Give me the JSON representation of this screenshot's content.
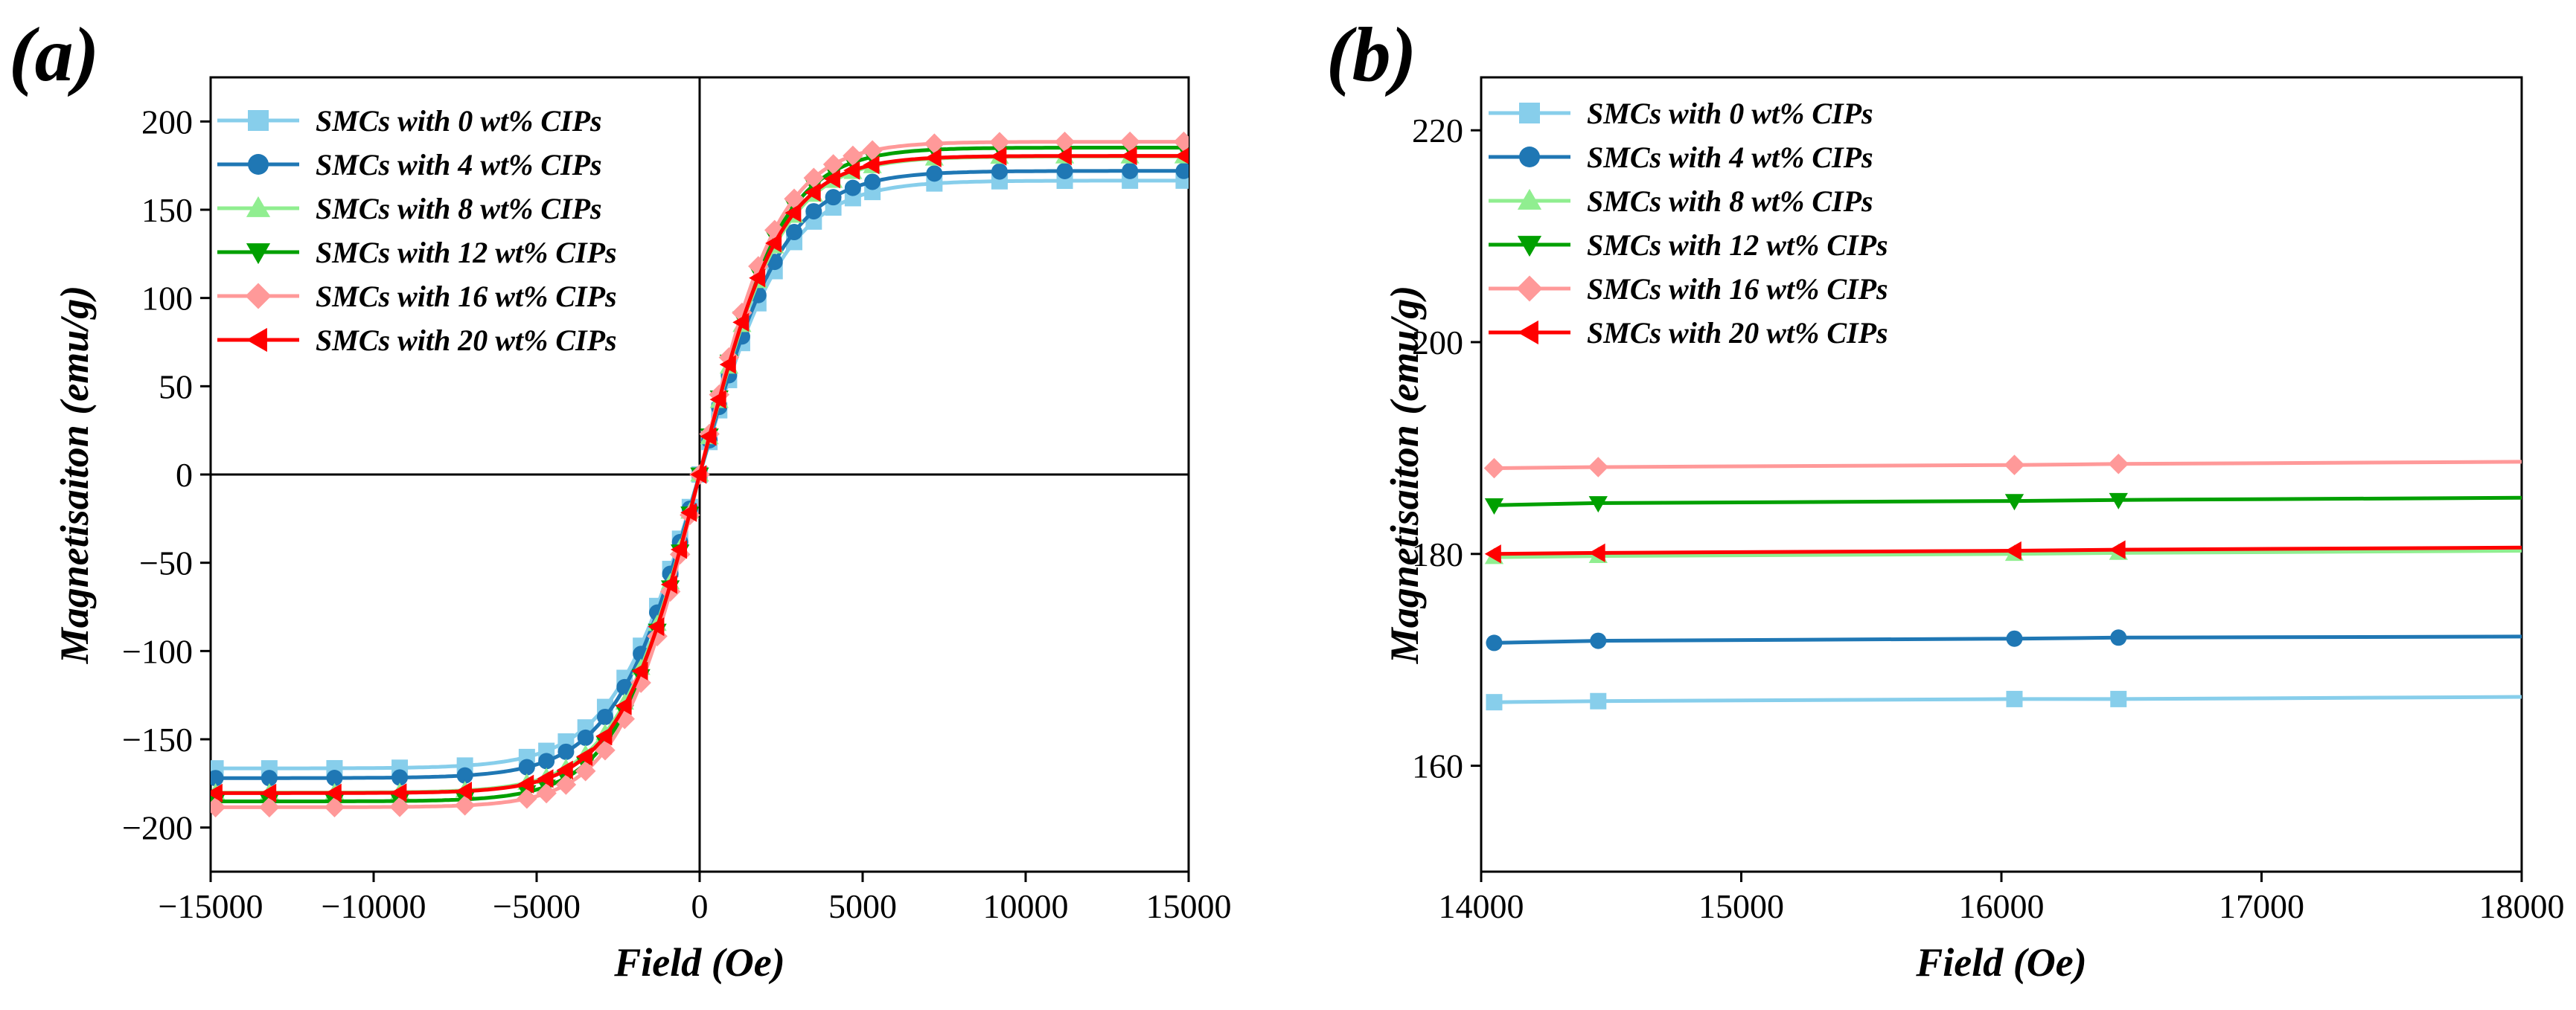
{
  "chart_data": [
    {
      "panel_label": "(a)",
      "type": "line",
      "xlabel": "Field (Oe)",
      "ylabel": "Magnetisaiton (emu/g)",
      "xlim": [
        -15000,
        15000
      ],
      "ylim": [
        -225,
        225
      ],
      "xticks": [
        -15000,
        -10000,
        -5000,
        0,
        5000,
        10000,
        15000
      ],
      "xtick_labels": [
        "−15000",
        "−10000",
        "−5000",
        "0",
        "5000",
        "10000",
        "15000"
      ],
      "yticks": [
        -200,
        -150,
        -100,
        -50,
        0,
        50,
        100,
        150,
        200
      ],
      "ytick_labels": [
        "−200",
        "−150",
        "−100",
        "−50",
        "0",
        "50",
        "100",
        "150",
        "200"
      ],
      "zero_lines": true,
      "legend_position": "top-left",
      "series": [
        {
          "name": "SMCs with  0  wt% CIPs",
          "color": "#87CEEB",
          "marker": "square",
          "ms": 166.5,
          "k": 2700
        },
        {
          "name": "SMCs with  4  wt% CIPs",
          "color": "#1f77b4",
          "marker": "circle",
          "ms": 172.0,
          "k": 2650
        },
        {
          "name": "SMCs with  8  wt% CIPs",
          "color": "#90EE90",
          "marker": "triangle-up",
          "ms": 180.2,
          "k": 2550
        },
        {
          "name": "SMCs with 12 wt% CIPs",
          "color": "#00A000",
          "marker": "triangle-down",
          "ms": 185.2,
          "k": 2500
        },
        {
          "name": "SMCs with 16 wt% CIPs",
          "color": "#FF9999",
          "marker": "diamond",
          "ms": 188.5,
          "k": 2450
        },
        {
          "name": "SMCs with 20 wt% CIPs",
          "color": "#FF0000",
          "marker": "triangle-left",
          "ms": 180.5,
          "k": 2500
        }
      ]
    },
    {
      "panel_label": "(b)",
      "type": "line",
      "xlabel": "Field (Oe)",
      "ylabel": "Magnetisaiton (emu/g)",
      "xlim": [
        14000,
        18000
      ],
      "ylim": [
        150,
        225
      ],
      "xticks": [
        14000,
        15000,
        16000,
        17000,
        18000
      ],
      "xtick_labels": [
        "14000",
        "15000",
        "16000",
        "17000",
        "18000"
      ],
      "yticks": [
        160,
        180,
        200,
        220
      ],
      "ytick_labels": [
        "160",
        "180",
        "200",
        "220"
      ],
      "legend_position": "top-left",
      "series": [
        {
          "name": "SMCs with  0  wt% CIPs",
          "color": "#87CEEB",
          "marker": "square",
          "x": [
            14050,
            14450,
            16050,
            16450,
            18000
          ],
          "y": [
            166.0,
            166.1,
            166.3,
            166.3,
            166.5
          ]
        },
        {
          "name": "SMCs with  4  wt% CIPs",
          "color": "#1f77b4",
          "marker": "circle",
          "x": [
            14050,
            14450,
            16050,
            16450,
            18000
          ],
          "y": [
            171.6,
            171.8,
            172.0,
            172.1,
            172.2
          ]
        },
        {
          "name": "SMCs with  8  wt% CIPs",
          "color": "#90EE90",
          "marker": "triangle-up",
          "x": [
            14050,
            14450,
            16050,
            16450,
            18000
          ],
          "y": [
            179.7,
            179.8,
            180.0,
            180.1,
            180.3
          ]
        },
        {
          "name": "SMCs with 12 wt% CIPs",
          "color": "#00A000",
          "marker": "triangle-down",
          "x": [
            14050,
            14450,
            16050,
            16450,
            18000
          ],
          "y": [
            184.6,
            184.8,
            185.0,
            185.1,
            185.3
          ]
        },
        {
          "name": "SMCs with 16 wt% CIPs",
          "color": "#FF9999",
          "marker": "diamond",
          "x": [
            14050,
            14450,
            16050,
            16450,
            18000
          ],
          "y": [
            188.1,
            188.2,
            188.4,
            188.5,
            188.7
          ]
        },
        {
          "name": "SMCs with 20 wt% CIPs",
          "color": "#FF0000",
          "marker": "triangle-left",
          "x": [
            14050,
            14450,
            16050,
            16450,
            18000
          ],
          "y": [
            180.0,
            180.1,
            180.3,
            180.4,
            180.6
          ]
        }
      ]
    }
  ]
}
